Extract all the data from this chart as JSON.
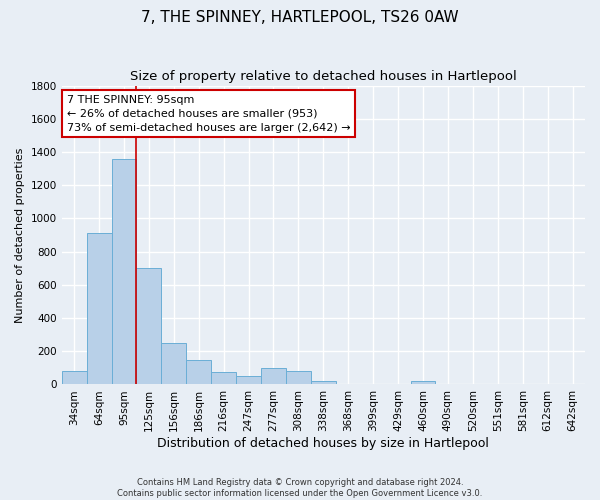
{
  "title": "7, THE SPINNEY, HARTLEPOOL, TS26 0AW",
  "subtitle": "Size of property relative to detached houses in Hartlepool",
  "xlabel": "Distribution of detached houses by size in Hartlepool",
  "ylabel": "Number of detached properties",
  "bar_labels": [
    "34sqm",
    "64sqm",
    "95sqm",
    "125sqm",
    "156sqm",
    "186sqm",
    "216sqm",
    "247sqm",
    "277sqm",
    "308sqm",
    "338sqm",
    "368sqm",
    "399sqm",
    "429sqm",
    "460sqm",
    "490sqm",
    "520sqm",
    "551sqm",
    "581sqm",
    "612sqm",
    "642sqm"
  ],
  "bar_values": [
    80,
    910,
    1360,
    700,
    250,
    145,
    75,
    50,
    100,
    80,
    20,
    0,
    0,
    0,
    20,
    0,
    0,
    0,
    0,
    0,
    0
  ],
  "bar_color": "#b8d0e8",
  "bar_edge_color": "#6aaed6",
  "vline_x": 2.5,
  "vline_color": "#cc0000",
  "ylim": [
    0,
    1800
  ],
  "yticks": [
    0,
    200,
    400,
    600,
    800,
    1000,
    1200,
    1400,
    1600,
    1800
  ],
  "annotation_title": "7 THE SPINNEY: 95sqm",
  "annotation_line1": "← 26% of detached houses are smaller (953)",
  "annotation_line2": "73% of semi-detached houses are larger (2,642) →",
  "annotation_box_color": "#ffffff",
  "annotation_box_edge": "#cc0000",
  "footnote1": "Contains HM Land Registry data © Crown copyright and database right 2024.",
  "footnote2": "Contains public sector information licensed under the Open Government Licence v3.0.",
  "bg_color": "#e8eef5",
  "plot_bg_color": "#e8eef5",
  "grid_color": "#ffffff",
  "title_fontsize": 11,
  "subtitle_fontsize": 9.5,
  "ylabel_fontsize": 8,
  "xlabel_fontsize": 9,
  "tick_fontsize": 7.5,
  "footnote_fontsize": 6,
  "annotation_fontsize": 8
}
